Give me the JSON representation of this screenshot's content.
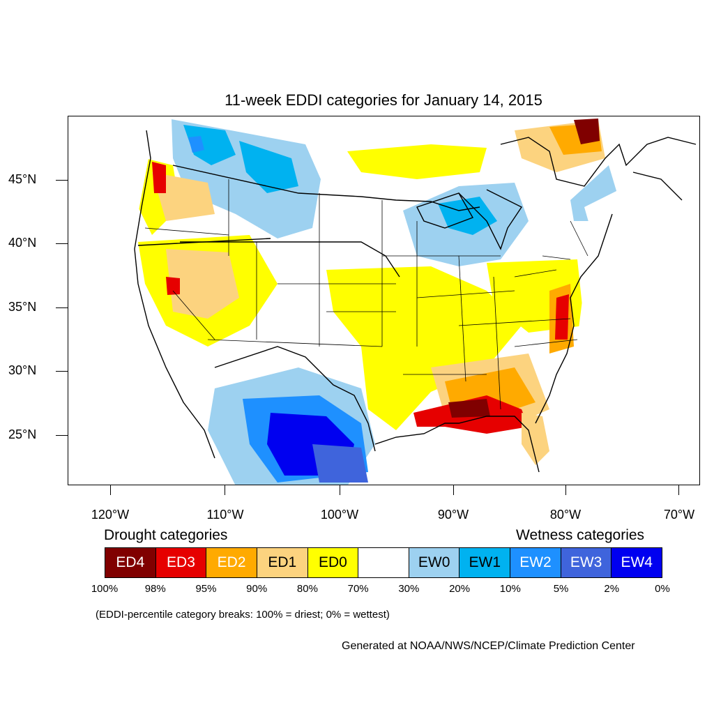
{
  "title": "11-week EDDI categories for January 14, 2015",
  "axes": {
    "lat_labels": [
      "45°N",
      "40°N",
      "35°N",
      "30°N",
      "25°N"
    ],
    "lon_labels": [
      "120°W",
      "110°W",
      "100°W",
      "90°W",
      "80°W",
      "70°W"
    ]
  },
  "legend": {
    "drought_heading": "Drought categories",
    "wetness_heading": "Wetness categories",
    "categories": [
      {
        "label": "ED4",
        "color": "#800000",
        "text_color": "#ffffff"
      },
      {
        "label": "ED3",
        "color": "#e60000",
        "text_color": "#ffffff"
      },
      {
        "label": "ED2",
        "color": "#ffaa00",
        "text_color": "#ffffff"
      },
      {
        "label": "ED1",
        "color": "#fcd37f",
        "text_color": "#000000"
      },
      {
        "label": "ED0",
        "color": "#ffff00",
        "text_color": "#000000"
      },
      {
        "label": "",
        "color": "#ffffff",
        "text_color": "#000000"
      },
      {
        "label": "EW0",
        "color": "#9dd1f0",
        "text_color": "#000000"
      },
      {
        "label": "EW1",
        "color": "#00b2f0",
        "text_color": "#000000"
      },
      {
        "label": "EW2",
        "color": "#1e90ff",
        "text_color": "#ffffff"
      },
      {
        "label": "EW3",
        "color": "#3f64dc",
        "text_color": "#ffffff"
      },
      {
        "label": "EW4",
        "color": "#0000f0",
        "text_color": "#ffffff"
      }
    ],
    "percentiles": [
      "100%",
      "98%",
      "95%",
      "90%",
      "80%",
      "70%",
      "30%",
      "20%",
      "10%",
      "5%",
      "2%",
      "0%"
    ]
  },
  "note": "(EDDI-percentile category breaks: 100% = driest; 0% = wettest)",
  "credit": "Generated at NOAA/NWS/NCEP/Climate Prediction Center"
}
